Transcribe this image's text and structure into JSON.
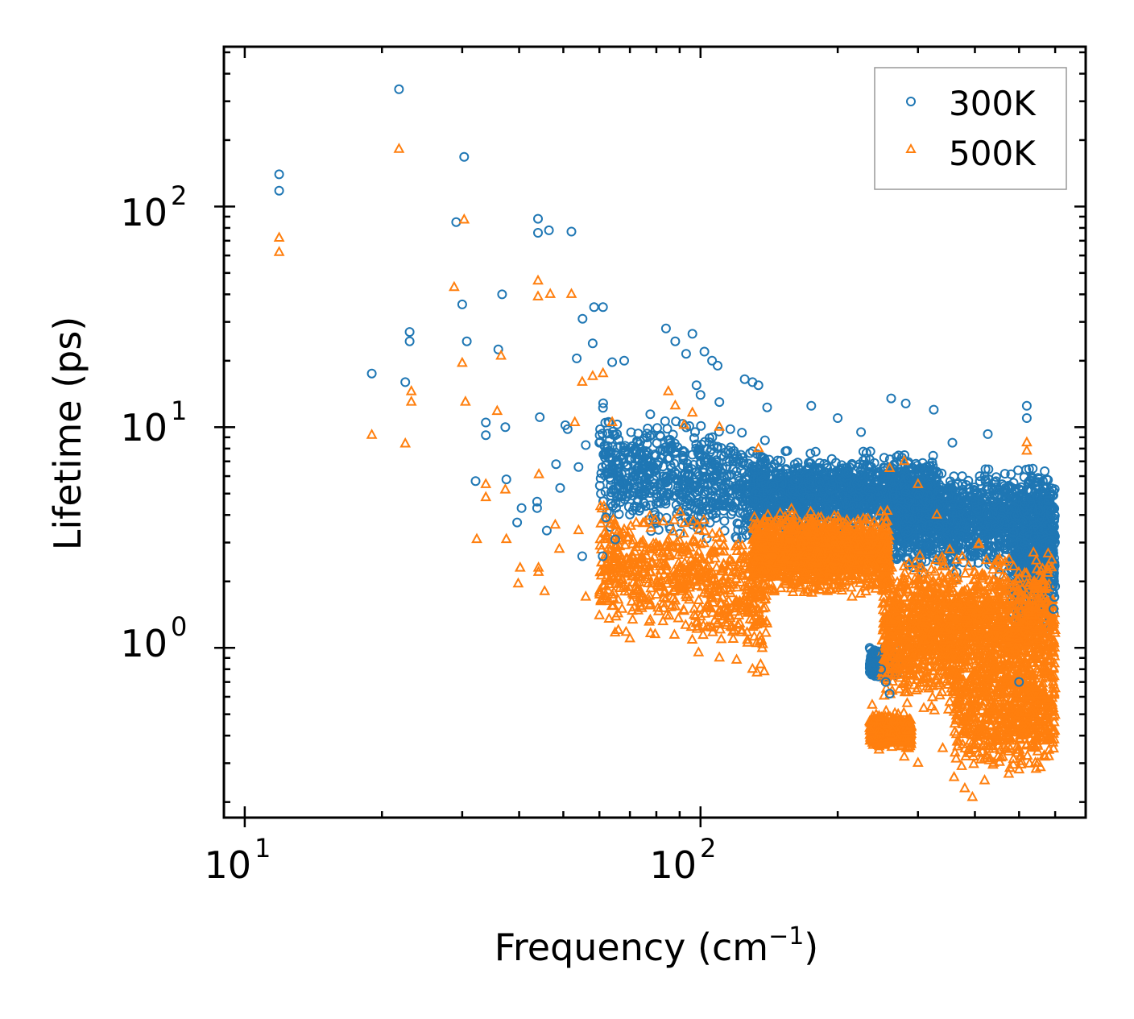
{
  "chart_data": {
    "type": "scatter",
    "xscale": "log",
    "yscale": "log",
    "xlabel": "Frequency (cm",
    "xlabel_sup": "−1",
    "xlabel_end": ")",
    "ylabel": "Lifetime (ps)",
    "xlim": [
      9,
      700
    ],
    "ylim": [
      0.17,
      530
    ],
    "x_ticks": [
      {
        "base": "10",
        "exp": "1",
        "value": 10
      },
      {
        "base": "10",
        "exp": "2",
        "value": 100
      }
    ],
    "y_ticks": [
      {
        "base": "10",
        "exp": "0",
        "value": 1
      },
      {
        "base": "10",
        "exp": "1",
        "value": 10
      },
      {
        "base": "10",
        "exp": "2",
        "value": 100
      }
    ],
    "legend_position": "top-right",
    "series": [
      {
        "name": "300K",
        "marker": "circle",
        "color": "#1f77b4",
        "points": [
          [
            11.9,
            140
          ],
          [
            11.9,
            118
          ],
          [
            21.8,
            340
          ],
          [
            30.3,
            168
          ],
          [
            29.1,
            85
          ],
          [
            44.0,
            88
          ],
          [
            44.0,
            76
          ],
          [
            46.5,
            78
          ],
          [
            52.1,
            77
          ],
          [
            36.7,
            40
          ],
          [
            30.0,
            36
          ],
          [
            23.0,
            27
          ],
          [
            23.0,
            24.5
          ],
          [
            30.7,
            24.5
          ],
          [
            36.0,
            22.5
          ],
          [
            19.0,
            17.5
          ],
          [
            22.5,
            16
          ],
          [
            33.8,
            10.5
          ],
          [
            33.8,
            9.2
          ],
          [
            37.3,
            10
          ],
          [
            44.4,
            11.1
          ],
          [
            32.1,
            5.7
          ],
          [
            37.5,
            5.8
          ],
          [
            43.8,
            4.6
          ],
          [
            43.8,
            4.3
          ],
          [
            40.5,
            4.3
          ],
          [
            39.6,
            3.7
          ],
          [
            46.0,
            3.4
          ],
          [
            48.2,
            6.8
          ],
          [
            49.2,
            5.3
          ],
          [
            50.5,
            10.2
          ],
          [
            51.1,
            9.8
          ],
          [
            53.5,
            20.5
          ],
          [
            55.1,
            31
          ],
          [
            58.4,
            35
          ],
          [
            61.1,
            35
          ],
          [
            58.0,
            24
          ],
          [
            64.0,
            19.7
          ],
          [
            68.0,
            20
          ],
          [
            54.0,
            6.6
          ],
          [
            56.0,
            8.3
          ],
          [
            60.0,
            8.5
          ],
          [
            63.0,
            10.5
          ],
          [
            55.0,
            2.6
          ],
          [
            61.0,
            2.6
          ],
          [
            62.0,
            3.9
          ],
          [
            65.0,
            3.1
          ],
          [
            84.0,
            28
          ],
          [
            88.0,
            24.5
          ],
          [
            96.0,
            26.5
          ],
          [
            93.0,
            21.5
          ],
          [
            102.0,
            22
          ],
          [
            106.0,
            20
          ],
          [
            109.0,
            19
          ],
          [
            98.0,
            15.5
          ],
          [
            100.0,
            14
          ],
          [
            110.0,
            13
          ],
          [
            125.0,
            16.5
          ],
          [
            130.0,
            16
          ],
          [
            134.0,
            15.5
          ],
          [
            140.0,
            12.3
          ],
          [
            175.0,
            12.5
          ],
          [
            200.0,
            11
          ],
          [
            225.0,
            9.5
          ],
          [
            262.0,
            13.5
          ],
          [
            282.0,
            12.8
          ],
          [
            325.0,
            12
          ],
          [
            357.0,
            8.5
          ],
          [
            410.0,
            6
          ],
          [
            427.0,
            9.3
          ],
          [
            520.0,
            12.5
          ],
          [
            520.0,
            11
          ],
          [
            600.0,
            1.9
          ],
          [
            598.0,
            1.7
          ],
          [
            595.0,
            1.5
          ],
          [
            540.0,
            3.2
          ],
          [
            243.0,
            0.95
          ],
          [
            249.0,
            0.8
          ],
          [
            255.0,
            0.7
          ],
          [
            260.0,
            0.62
          ],
          [
            235.0,
            1.0
          ],
          [
            500.0,
            0.7
          ]
        ]
      },
      {
        "name": "500K",
        "marker": "triangle",
        "color": "#ff7f0e",
        "points": [
          [
            11.9,
            72
          ],
          [
            11.9,
            62
          ],
          [
            21.8,
            182
          ],
          [
            30.3,
            87
          ],
          [
            28.8,
            43
          ],
          [
            44.0,
            46
          ],
          [
            44.0,
            39
          ],
          [
            46.8,
            40
          ],
          [
            52.1,
            40
          ],
          [
            36.5,
            21
          ],
          [
            30.0,
            19.5
          ],
          [
            23.2,
            14.5
          ],
          [
            23.2,
            13
          ],
          [
            30.5,
            13
          ],
          [
            35.8,
            11.8
          ],
          [
            19.0,
            9.2
          ],
          [
            22.5,
            8.4
          ],
          [
            33.8,
            5.5
          ],
          [
            33.8,
            4.8
          ],
          [
            37.3,
            5.2
          ],
          [
            44.2,
            6.1
          ],
          [
            32.3,
            3.1
          ],
          [
            37.5,
            3.1
          ],
          [
            44.1,
            2.3
          ],
          [
            44.1,
            2.2
          ],
          [
            40.2,
            2.3
          ],
          [
            39.8,
            1.95
          ],
          [
            45.5,
            1.8
          ],
          [
            48.0,
            3.6
          ],
          [
            49.0,
            2.8
          ],
          [
            53.0,
            10.5
          ],
          [
            55.0,
            16
          ],
          [
            58.0,
            17
          ],
          [
            61.1,
            17.5
          ],
          [
            64.0,
            10.5
          ],
          [
            54.0,
            3.4
          ],
          [
            56.0,
            1.7
          ],
          [
            60.0,
            1.4
          ],
          [
            63.0,
            1.35
          ],
          [
            66.0,
            1.2
          ],
          [
            70.0,
            1.1
          ],
          [
            85.0,
            14.5
          ],
          [
            88.0,
            12.5
          ],
          [
            96.0,
            11.6
          ],
          [
            92.0,
            10.2
          ],
          [
            110.0,
            10
          ],
          [
            134.0,
            8.0
          ],
          [
            99.0,
            0.95
          ],
          [
            110.0,
            0.9
          ],
          [
            120.0,
            0.88
          ],
          [
            130.0,
            0.8
          ],
          [
            133.0,
            0.77
          ],
          [
            138.0,
            0.78
          ],
          [
            190.0,
            1.8
          ],
          [
            215.0,
            1.7
          ],
          [
            280.0,
            7.0
          ],
          [
            260.0,
            6.5
          ],
          [
            300.0,
            5.5
          ],
          [
            330.0,
            4.0
          ],
          [
            365.0,
            2.5
          ],
          [
            520.0,
            8.5
          ],
          [
            520.0,
            7.8
          ],
          [
            600.0,
            1.2
          ],
          [
            598.0,
            1.0
          ],
          [
            595.0,
            0.8
          ],
          [
            540.0,
            2.0
          ],
          [
            238.0,
            0.55
          ],
          [
            245.0,
            0.45
          ],
          [
            262.0,
            0.4
          ],
          [
            280.0,
            0.32
          ],
          [
            300.0,
            0.3
          ],
          [
            340.0,
            0.35
          ],
          [
            380.0,
            0.23
          ],
          [
            395.0,
            0.21
          ],
          [
            420.0,
            0.25
          ],
          [
            440.0,
            0.3
          ],
          [
            500.0,
            0.28
          ],
          [
            550.0,
            0.3
          ],
          [
            570.0,
            0.32
          ],
          [
            480.0,
            0.45
          ]
        ]
      }
    ]
  }
}
